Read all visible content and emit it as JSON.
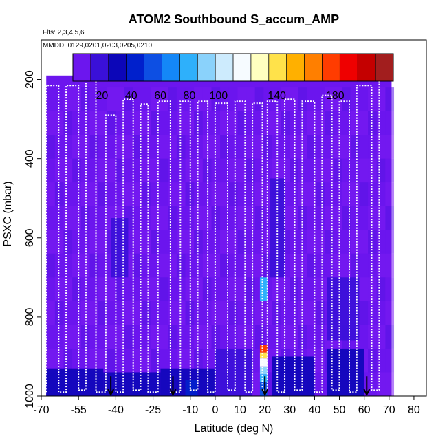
{
  "chart_data": {
    "type": "heatmap",
    "title": "ATOM2 Southbound S_accum_AMP",
    "subtitle_flights": "Flts: 2,3,4,5,6",
    "subtitle_dates": "MMDD: 0129,0201,0203,0205,0210",
    "xlabel": "Latitude (deg N)",
    "ylabel": "PSXC (mbar)",
    "xlim": [
      -70,
      85
    ],
    "ylim": [
      1000,
      100
    ],
    "x_ticks": [
      -70,
      -55,
      -40,
      -25,
      -10,
      0,
      10,
      20,
      30,
      40,
      50,
      60,
      70,
      80
    ],
    "y_ticks": [
      200,
      400,
      600,
      800,
      1000
    ],
    "colorbar": {
      "range": [
        0,
        220
      ],
      "tick_values": [
        20,
        40,
        60,
        80,
        100,
        140,
        180
      ],
      "tick_labels": [
        "20",
        "40",
        "60",
        "80",
        "100",
        "140",
        "180"
      ],
      "colors": [
        "#6c16ee",
        "#3a10d8",
        "#0c06b8",
        "#0020cc",
        "#0d4fe3",
        "#1487f7",
        "#2eb0fb",
        "#8ad2fb",
        "#cdebfd",
        "#f6fbff",
        "#ffffc0",
        "#ffe24a",
        "#ffb000",
        "#ff7f00",
        "#ff3c00",
        "#ef0000",
        "#c40000",
        "#a21e1e"
      ]
    },
    "background_value": 5,
    "data_lat_range": [
      -68,
      71
    ],
    "data_p_range": [
      190,
      1000
    ],
    "blue_patches": [
      {
        "lat": [
          -68,
          -45
        ],
        "p": [
          930,
          1000
        ],
        "value": 35
      },
      {
        "lat": [
          -45,
          -22
        ],
        "p": [
          940,
          1000
        ],
        "value": 25
      },
      {
        "lat": [
          -22,
          0
        ],
        "p": [
          930,
          1000
        ],
        "value": 32
      },
      {
        "lat": [
          0,
          15
        ],
        "p": [
          880,
          1000
        ],
        "value": 22
      },
      {
        "lat": [
          23,
          40
        ],
        "p": [
          900,
          1000
        ],
        "value": 25
      },
      {
        "lat": [
          45,
          60
        ],
        "p": [
          880,
          1000
        ],
        "value": 30
      },
      {
        "lat": [
          -12,
          -7
        ],
        "p": [
          960,
          1000
        ],
        "value": 40
      },
      {
        "lat": [
          22,
          28
        ],
        "p": [
          450,
          700
        ],
        "value": 18
      },
      {
        "lat": [
          45,
          58
        ],
        "p": [
          700,
          860
        ],
        "value": 20
      },
      {
        "lat": [
          -42,
          -35
        ],
        "p": [
          550,
          700
        ],
        "value": 15
      }
    ],
    "high_column": {
      "lat": [
        18,
        21
      ],
      "segments": [
        {
          "p": [
            870,
            890
          ],
          "value": 175
        },
        {
          "p": [
            890,
            905
          ],
          "value": 135
        },
        {
          "p": [
            905,
            925
          ],
          "value": 115
        },
        {
          "p": [
            925,
            945
          ],
          "value": 95
        },
        {
          "p": [
            945,
            965
          ],
          "value": 80
        },
        {
          "p": [
            965,
            1000
          ],
          "value": 60
        },
        {
          "p": [
            700,
            760
          ],
          "value": 75
        }
      ]
    },
    "flight_track": [
      [
        -68,
        990
      ],
      [
        -68,
        215
      ],
      [
        -63,
        215
      ],
      [
        -63,
        990
      ],
      [
        -60,
        990
      ],
      [
        -60,
        215
      ],
      [
        -55,
        215
      ],
      [
        -55,
        985
      ],
      [
        -52,
        985
      ],
      [
        -52,
        200
      ],
      [
        -48,
        200
      ],
      [
        -48,
        990
      ],
      [
        -44,
        990
      ],
      [
        -44,
        290
      ],
      [
        -40,
        290
      ],
      [
        -40,
        990
      ],
      [
        -37,
        990
      ],
      [
        -37,
        250
      ],
      [
        -33,
        250
      ],
      [
        -33,
        985
      ],
      [
        -30,
        985
      ],
      [
        -30,
        262
      ],
      [
        -27,
        262
      ],
      [
        -27,
        990
      ],
      [
        -23,
        990
      ],
      [
        -23,
        255
      ],
      [
        -18,
        255
      ],
      [
        -18,
        990
      ],
      [
        -14,
        990
      ],
      [
        -14,
        255
      ],
      [
        -10,
        255
      ],
      [
        -10,
        985
      ],
      [
        -7,
        985
      ],
      [
        -7,
        255
      ],
      [
        -3,
        255
      ],
      [
        -3,
        990
      ],
      [
        0,
        990
      ],
      [
        0,
        260
      ],
      [
        5,
        260
      ],
      [
        5,
        985
      ],
      [
        8,
        985
      ],
      [
        8,
        255
      ],
      [
        12,
        255
      ],
      [
        12,
        990
      ],
      [
        15,
        990
      ],
      [
        15,
        260
      ],
      [
        19,
        260
      ],
      [
        19,
        985
      ],
      [
        21,
        985
      ],
      [
        21,
        255
      ],
      [
        25,
        255
      ],
      [
        25,
        990
      ],
      [
        28,
        990
      ],
      [
        28,
        250
      ],
      [
        32,
        250
      ],
      [
        32,
        985
      ],
      [
        35,
        985
      ],
      [
        35,
        255
      ],
      [
        40,
        255
      ],
      [
        40,
        990
      ],
      [
        43,
        990
      ],
      [
        43,
        240
      ],
      [
        47,
        240
      ],
      [
        47,
        985
      ],
      [
        50,
        985
      ],
      [
        50,
        255
      ],
      [
        54,
        255
      ],
      [
        54,
        990
      ],
      [
        57,
        990
      ],
      [
        57,
        215
      ],
      [
        63,
        215
      ],
      [
        63,
        985
      ],
      [
        66,
        985
      ],
      [
        66,
        200
      ],
      [
        71,
        200
      ]
    ],
    "arrows_lat": [
      -42,
      -17,
      20,
      61
    ]
  }
}
